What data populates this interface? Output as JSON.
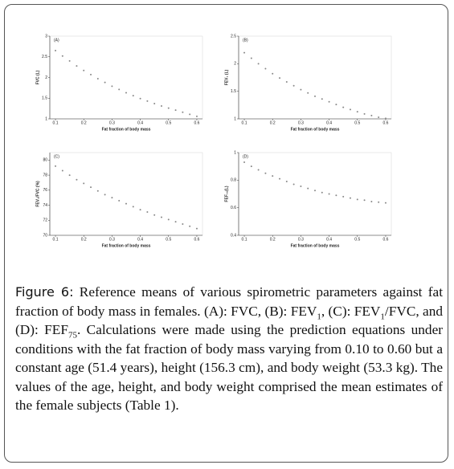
{
  "chart_data": [
    {
      "type": "scatter",
      "panel": "(A)",
      "ylabel": "FVC (L)",
      "xlabel": "Fat fraction of body mass",
      "color": "#888888",
      "x": [
        0.1,
        0.125,
        0.15,
        0.175,
        0.2,
        0.225,
        0.25,
        0.275,
        0.3,
        0.325,
        0.35,
        0.375,
        0.4,
        0.425,
        0.45,
        0.475,
        0.5,
        0.525,
        0.55,
        0.575,
        0.6
      ],
      "values": [
        2.65,
        2.52,
        2.4,
        2.28,
        2.17,
        2.07,
        1.97,
        1.88,
        1.79,
        1.71,
        1.63,
        1.56,
        1.49,
        1.43,
        1.37,
        1.31,
        1.26,
        1.21,
        1.16,
        1.11,
        1.06
      ],
      "xlim": [
        0.08,
        0.62
      ],
      "xticks": [
        0.1,
        0.2,
        0.3,
        0.4,
        0.5,
        0.6
      ],
      "ylim": [
        1.0,
        3.0
      ],
      "yticks": [
        1.0,
        1.5,
        2.0,
        2.5,
        3.0
      ]
    },
    {
      "type": "scatter",
      "panel": "(B)",
      "ylabel": "FEV₁ (L)",
      "xlabel": "Fat fraction of body mass",
      "color": "#888888",
      "x": [
        0.1,
        0.125,
        0.15,
        0.175,
        0.2,
        0.225,
        0.25,
        0.275,
        0.3,
        0.325,
        0.35,
        0.375,
        0.4,
        0.425,
        0.45,
        0.475,
        0.5,
        0.525,
        0.55,
        0.575,
        0.6
      ],
      "values": [
        2.2,
        2.1,
        2.0,
        1.91,
        1.82,
        1.74,
        1.67,
        1.6,
        1.53,
        1.47,
        1.41,
        1.36,
        1.31,
        1.26,
        1.21,
        1.17,
        1.13,
        1.09,
        1.06,
        1.03,
        1.01
      ],
      "xlim": [
        0.08,
        0.62
      ],
      "xticks": [
        0.1,
        0.2,
        0.3,
        0.4,
        0.5,
        0.6
      ],
      "ylim": [
        1.0,
        2.5
      ],
      "yticks": [
        1.0,
        1.5,
        2.0,
        2.5
      ]
    },
    {
      "type": "scatter",
      "panel": "(C)",
      "ylabel": "FEV₁/FVC (%)",
      "xlabel": "Fat fraction of body mass",
      "color": "#888888",
      "x": [
        0.1,
        0.125,
        0.15,
        0.175,
        0.2,
        0.225,
        0.25,
        0.275,
        0.3,
        0.325,
        0.35,
        0.375,
        0.4,
        0.425,
        0.45,
        0.475,
        0.5,
        0.525,
        0.55,
        0.575,
        0.6
      ],
      "values": [
        79.2,
        78.6,
        78.0,
        77.4,
        76.9,
        76.4,
        75.9,
        75.4,
        75.0,
        74.6,
        74.2,
        73.8,
        73.4,
        73.1,
        72.7,
        72.4,
        72.1,
        71.8,
        71.5,
        71.2,
        70.9
      ],
      "xlim": [
        0.08,
        0.62
      ],
      "xticks": [
        0.1,
        0.2,
        0.3,
        0.4,
        0.5,
        0.6
      ],
      "ylim": [
        70,
        81
      ],
      "yticks": [
        70,
        72,
        74,
        76,
        78,
        80
      ]
    },
    {
      "type": "scatter",
      "panel": "(D)",
      "ylabel": "FEF₇₅(L)",
      "xlabel": "Fat fraction of body mass",
      "color": "#888888",
      "x": [
        0.1,
        0.125,
        0.15,
        0.175,
        0.2,
        0.225,
        0.25,
        0.275,
        0.3,
        0.325,
        0.35,
        0.375,
        0.4,
        0.425,
        0.45,
        0.475,
        0.5,
        0.525,
        0.55,
        0.575,
        0.6
      ],
      "values": [
        0.93,
        0.9,
        0.875,
        0.85,
        0.83,
        0.81,
        0.79,
        0.77,
        0.755,
        0.74,
        0.725,
        0.71,
        0.7,
        0.69,
        0.68,
        0.67,
        0.66,
        0.655,
        0.645,
        0.64,
        0.635
      ],
      "xlim": [
        0.08,
        0.62
      ],
      "xticks": [
        0.1,
        0.2,
        0.3,
        0.4,
        0.5,
        0.6
      ],
      "ylim": [
        0.4,
        1.0
      ],
      "yticks": [
        0.4,
        0.6,
        0.8,
        1.0
      ]
    }
  ],
  "caption": {
    "label": "Figure 6:",
    "parts": [
      {
        "text": " Reference means of various spirometric parameters against fat fraction of body mass in females. (A): FVC, (B): FEV"
      },
      {
        "sub": "1"
      },
      {
        "text": ", (C): FEV"
      },
      {
        "sub": "1"
      },
      {
        "text": "/FVC, and (D): FEF"
      },
      {
        "sub": "75"
      },
      {
        "text": ". Calculations were made using the prediction equations under conditions with the fat fraction of body mass varying from 0.10 to 0.60 but a constant age (51.4 years), height (156.3 cm), and body weight (53.3 kg). The values of the age, height, and body weight comprised the mean estimates of the female subjects (Table 1)."
      }
    ]
  }
}
